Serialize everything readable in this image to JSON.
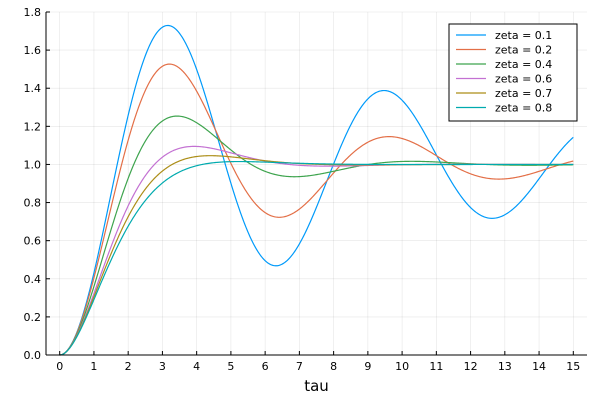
{
  "chart_data": {
    "type": "line",
    "title": "",
    "xlabel": "tau",
    "ylabel": "",
    "xlim": [
      -0.4,
      15.4
    ],
    "ylim": [
      0,
      1.8
    ],
    "grid": true,
    "legend_position": "top-right",
    "x_ticks": [
      "0",
      "1",
      "2",
      "3",
      "4",
      "5",
      "6",
      "7",
      "8",
      "9",
      "10",
      "11",
      "12",
      "13",
      "14",
      "15"
    ],
    "y_ticks": [
      "0.0",
      "0.2",
      "0.4",
      "0.6",
      "0.8",
      "1.0",
      "1.2",
      "1.4",
      "1.6",
      "1.8"
    ],
    "series": [
      {
        "name": "zeta = 0.1",
        "color": "#009AFA",
        "zeta": 0.1
      },
      {
        "name": "zeta = 0.2",
        "color": "#E36F47",
        "zeta": 0.2
      },
      {
        "name": "zeta = 0.4",
        "color": "#3EA44E",
        "zeta": 0.4
      },
      {
        "name": "zeta = 0.6",
        "color": "#C371D2",
        "zeta": 0.6
      },
      {
        "name": "zeta = 0.7",
        "color": "#AC8E18",
        "zeta": 0.7
      },
      {
        "name": "zeta = 0.8",
        "color": "#00AAAE",
        "zeta": 0.8
      }
    ]
  }
}
